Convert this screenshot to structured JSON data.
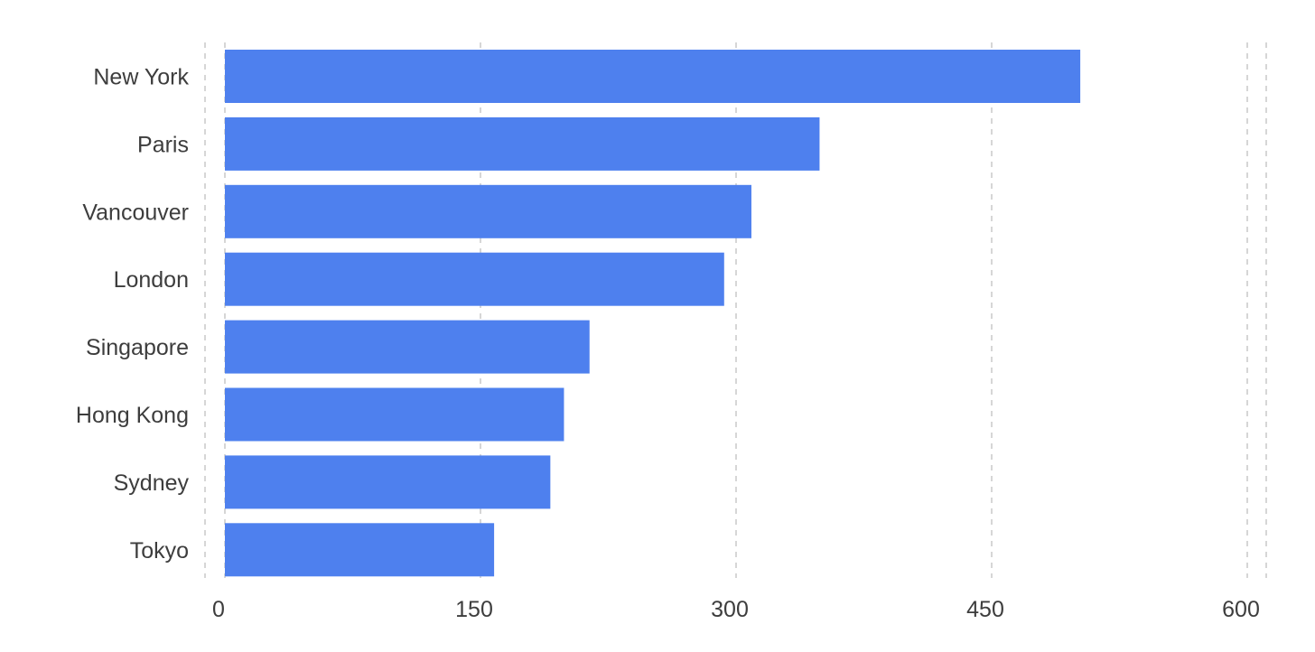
{
  "chart_data": {
    "type": "bar",
    "orientation": "horizontal",
    "categories": [
      "New York",
      "Paris",
      "Vancouver",
      "London",
      "Singapore",
      "Hong Kong",
      "Sydney",
      "Tokyo"
    ],
    "values": [
      502,
      349,
      309,
      293,
      214,
      199,
      191,
      158
    ],
    "xticks": [
      0,
      150,
      300,
      450,
      600
    ],
    "xlim": [
      0,
      612
    ],
    "title": "",
    "xlabel": "",
    "ylabel": "",
    "grid": "vertical dashed",
    "bar_color": "#4E80EE"
  }
}
